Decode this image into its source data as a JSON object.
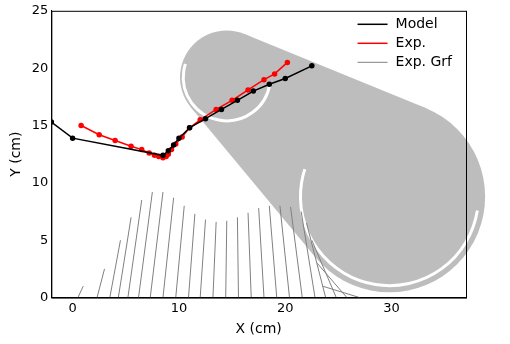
{
  "chart_data": {
    "type": "line",
    "x_label": "X (cm)",
    "y_label": "Y (cm)",
    "xlim": [
      -2,
      37
    ],
    "xticks": [
      0,
      10,
      20,
      30
    ],
    "ylim": [
      0,
      25
    ],
    "yticks": [
      0,
      5,
      10,
      15,
      20,
      25
    ],
    "legend": "upper right",
    "series": [
      {
        "name": "Model",
        "color": "#000000",
        "marker": "circle",
        "line_style": "solid",
        "x": [
          -2,
          0,
          8.5,
          9,
          9.5,
          10,
          11,
          12.5,
          14,
          15.5,
          17,
          18.5,
          20,
          22.5
        ],
        "values": [
          15.3,
          13.9,
          12.4,
          12.8,
          13.3,
          13.9,
          14.8,
          15.6,
          16.4,
          17.2,
          18,
          18.6,
          19.1,
          20.2
        ]
      },
      {
        "name": "Exp.",
        "color": "#ff0000",
        "marker": "circle",
        "line_style": "solid",
        "x": [
          0.8,
          2.5,
          4,
          5.5,
          6.5,
          7.2,
          7.7,
          8.1,
          8.5,
          8.8,
          9,
          9.3,
          9.7,
          10.3,
          11,
          12,
          13.5,
          15,
          16.5,
          18,
          19,
          20.2
        ],
        "values": [
          15,
          14.2,
          13.7,
          13.2,
          12.9,
          12.6,
          12.4,
          12.3,
          12.2,
          12.3,
          12.5,
          12.9,
          13.4,
          14,
          14.8,
          15.5,
          16.4,
          17.2,
          18.1,
          19,
          19.5,
          20.5
        ]
      },
      {
        "name": "Exp. Grf",
        "color": "#808080",
        "marker": "none",
        "line_style": "segments",
        "x0": [
          0.5,
          2.3,
          3.5,
          4.3,
          5.2,
          6.2,
          7.3,
          8.5,
          9.7,
          10.9,
          12,
          13.2,
          14.4,
          15.6,
          16.8,
          18,
          19.2,
          20.4,
          21.6,
          22.8,
          23.8,
          24.8,
          25.8,
          27
        ],
        "y0": [
          0,
          0,
          0,
          0,
          0,
          0,
          0,
          0,
          0,
          0,
          0,
          0,
          0,
          0,
          0,
          0,
          0,
          0,
          0,
          0,
          0,
          0,
          0,
          0
        ],
        "x1": [
          1,
          3,
          4.5,
          5.5,
          6.5,
          7.5,
          8.5,
          9.5,
          10.5,
          11.5,
          12.5,
          13.5,
          14.5,
          15.5,
          16.5,
          17.5,
          18.5,
          19.5,
          20.5,
          21.5,
          22,
          22.5,
          23,
          23.5
        ],
        "y1": [
          1,
          2.5,
          5,
          7,
          8.5,
          9.2,
          9.2,
          8.7,
          8,
          7.3,
          6.8,
          6.6,
          6.7,
          7,
          7.4,
          7.8,
          8,
          8,
          7.9,
          7.5,
          6.5,
          5,
          3,
          1
        ]
      }
    ],
    "circles": [
      {
        "x": 14.5,
        "y": 19.2,
        "r": 4.4
      },
      {
        "x": 29.8,
        "y": 8.8,
        "r": 9
      }
    ]
  }
}
